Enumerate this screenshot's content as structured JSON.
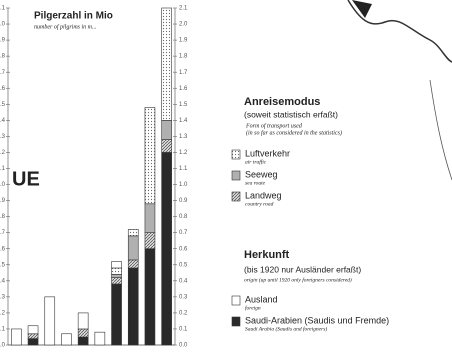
{
  "chart_data": {
    "type": "bar",
    "stacked": true,
    "title": "Pilgerzahl in Mio",
    "subtitle": "number of pilgrims in m...",
    "fragment": "UE",
    "categories": [
      null,
      null,
      null,
      null,
      null,
      null,
      null,
      null,
      null,
      null
    ],
    "ylim": [
      0,
      2.1
    ],
    "yticks": [
      {
        "value": 0,
        "label": "0.0"
      },
      {
        "value": 0.1,
        "label": "0.1"
      },
      {
        "value": 0.2,
        "label": "0.2"
      },
      {
        "value": 0.3,
        "label": "0.3"
      },
      {
        "value": 0.4,
        "label": "0.4"
      },
      {
        "value": 0.5,
        "label": "0.5"
      },
      {
        "value": 0.6,
        "label": "0.6"
      },
      {
        "value": 0.7,
        "label": "0.7"
      },
      {
        "value": 0.8,
        "label": "0.8"
      },
      {
        "value": 0.9,
        "label": "0.9"
      },
      {
        "value": 1,
        "label": "1.0"
      },
      {
        "value": 1.1,
        "label": "1.1"
      },
      {
        "value": 1.2,
        "label": "1.2"
      },
      {
        "value": 1.3,
        "label": "1.3"
      },
      {
        "value": 1.4,
        "label": "1.4"
      },
      {
        "value": 1.5,
        "label": "1.5"
      },
      {
        "value": 1.6,
        "label": "1.6"
      },
      {
        "value": 1.7,
        "label": "1.7"
      },
      {
        "value": 1.8,
        "label": "1.8"
      },
      {
        "value": 1.9,
        "label": "1.9"
      },
      {
        "value": 2,
        "label": "2.0"
      },
      {
        "value": 2.1,
        "label": "2.1"
      }
    ],
    "series": [
      {
        "name": "Saudi-Arabien (Saudis und Fremde)",
        "note": "Saudi Arabia (Saudis and foreigners)",
        "color": "#2a2a2a",
        "fill_style": "solid",
        "values": [
          0,
          0.04,
          0,
          0,
          0.05,
          0,
          0.38,
          0.48,
          0.6,
          1.2
        ]
      },
      {
        "name": "Landweg",
        "note": "country road",
        "color": "#555555",
        "fill_style": "hatch",
        "values": [
          0,
          0.03,
          0,
          0,
          0.05,
          0,
          0.04,
          0.05,
          0.1,
          0.08
        ]
      },
      {
        "name": "Seeweg",
        "note": "sea route",
        "color": "#b0b0b0",
        "fill_style": "solid",
        "values": [
          0,
          0,
          0,
          0,
          0,
          0,
          0.02,
          0.15,
          0.18,
          0.12
        ]
      },
      {
        "name": "Luftverkehr",
        "note": "air traffic",
        "color": "#777777",
        "fill_style": "dots",
        "values": [
          0,
          0,
          0,
          0,
          0,
          0,
          0.04,
          0.04,
          0.6,
          0.7
        ]
      },
      {
        "name": "Ausland",
        "note": "foreign",
        "color": "#ffffff",
        "fill_style": "solid",
        "values": [
          0.1,
          0.05,
          0.3,
          0.07,
          0.1,
          0.08,
          0.04,
          0,
          0,
          0
        ]
      }
    ],
    "legend_groups": [
      {
        "title": "Anreisemodus",
        "subtitle": "(soweit statistisch erfaßt)",
        "caption": "Form of transport used",
        "caption2": "(in so far as considered in the statistics)"
      },
      {
        "title": "Herkunft",
        "subtitle": "(bis 1920 nur Ausländer erfaßt)",
        "caption": "origin (up until 1920 only foreigners considered)"
      }
    ]
  }
}
